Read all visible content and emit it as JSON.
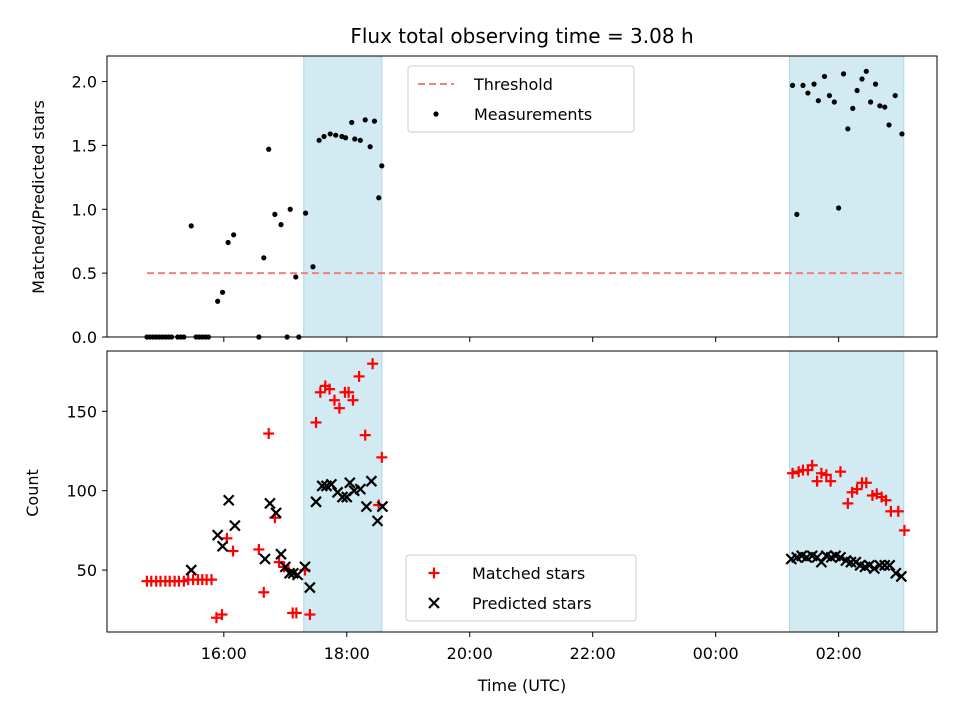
{
  "chart_data": {
    "type": "scatter",
    "title": "Flux total observing time = 3.08 h",
    "xlabel": "Time (UTC)",
    "x_tick_labels": [
      "16:00",
      "18:00",
      "20:00",
      "22:00",
      "00:00",
      "02:00"
    ],
    "x_tick_hours": [
      16,
      18,
      20,
      22,
      24,
      26
    ],
    "xlim_hours": [
      14.1,
      27.6
    ],
    "shaded_intervals_hours": [
      [
        17.3,
        18.57
      ],
      [
        25.2,
        27.06
      ]
    ],
    "colors": {
      "shade": "#add8e6",
      "threshold": "#f08080",
      "matched": "#ff0000",
      "predicted": "#000000"
    },
    "panels": [
      {
        "ylabel": "Matched/Predicted stars",
        "ylim": [
          0,
          2.2
        ],
        "y_ticks": [
          0.0,
          0.5,
          1.0,
          1.5,
          2.0
        ],
        "y_tick_labels": [
          "0.0",
          "0.5",
          "1.0",
          "1.5",
          "2.0"
        ],
        "legend": [
          "Threshold",
          "Measurements"
        ],
        "threshold": {
          "name": "Threshold",
          "value": 0.5,
          "x_range_hours": [
            14.75,
            27.07
          ]
        },
        "series": [
          {
            "name": "Measurements",
            "marker": "dot",
            "points": [
              [
                14.75,
                0.0
              ],
              [
                14.8,
                0.0
              ],
              [
                14.85,
                0.0
              ],
              [
                14.9,
                0.0
              ],
              [
                14.95,
                0.0
              ],
              [
                15.0,
                0.0
              ],
              [
                15.05,
                0.0
              ],
              [
                15.1,
                0.0
              ],
              [
                15.15,
                0.0
              ],
              [
                15.25,
                0.0
              ],
              [
                15.3,
                0.0
              ],
              [
                15.35,
                0.0
              ],
              [
                15.47,
                0.87
              ],
              [
                15.55,
                0.0
              ],
              [
                15.6,
                0.0
              ],
              [
                15.65,
                0.0
              ],
              [
                15.7,
                0.0
              ],
              [
                15.75,
                0.0
              ],
              [
                15.9,
                0.28
              ],
              [
                15.98,
                0.35
              ],
              [
                16.07,
                0.74
              ],
              [
                16.16,
                0.8
              ],
              [
                16.57,
                0.0
              ],
              [
                16.65,
                0.62
              ],
              [
                16.73,
                1.47
              ],
              [
                16.83,
                0.96
              ],
              [
                16.93,
                0.88
              ],
              [
                17.03,
                0.0
              ],
              [
                17.08,
                1.0
              ],
              [
                17.17,
                0.47
              ],
              [
                17.22,
                0.0
              ],
              [
                17.33,
                0.97
              ],
              [
                17.45,
                0.55
              ],
              [
                17.55,
                1.54
              ],
              [
                17.63,
                1.57
              ],
              [
                17.73,
                1.59
              ],
              [
                17.82,
                1.58
              ],
              [
                17.92,
                1.57
              ],
              [
                17.98,
                1.56
              ],
              [
                18.08,
                1.68
              ],
              [
                18.13,
                1.55
              ],
              [
                18.22,
                1.54
              ],
              [
                18.3,
                1.7
              ],
              [
                18.38,
                1.49
              ],
              [
                18.45,
                1.69
              ],
              [
                18.52,
                1.09
              ],
              [
                18.57,
                1.34
              ],
              [
                25.25,
                1.97
              ],
              [
                25.32,
                0.96
              ],
              [
                25.42,
                1.97
              ],
              [
                25.5,
                1.91
              ],
              [
                25.6,
                1.98
              ],
              [
                25.67,
                1.85
              ],
              [
                25.77,
                2.04
              ],
              [
                25.85,
                1.89
              ],
              [
                25.93,
                1.84
              ],
              [
                26.0,
                1.01
              ],
              [
                26.08,
                2.06
              ],
              [
                26.15,
                1.63
              ],
              [
                26.23,
                1.79
              ],
              [
                26.3,
                1.93
              ],
              [
                26.38,
                2.02
              ],
              [
                26.45,
                2.08
              ],
              [
                26.52,
                1.84
              ],
              [
                26.6,
                1.98
              ],
              [
                26.67,
                1.81
              ],
              [
                26.75,
                1.8
              ],
              [
                26.82,
                1.66
              ],
              [
                26.92,
                1.89
              ],
              [
                27.03,
                1.59
              ]
            ]
          }
        ]
      },
      {
        "ylabel": "Count",
        "ylim": [
          11,
          188
        ],
        "y_ticks": [
          50,
          100,
          150
        ],
        "y_tick_labels": [
          "50",
          "100",
          "150"
        ],
        "legend": [
          "Matched stars",
          "Predicted stars"
        ],
        "series": [
          {
            "name": "Matched stars",
            "marker": "plus",
            "points": [
              [
                14.75,
                43
              ],
              [
                14.82,
                43
              ],
              [
                14.9,
                43
              ],
              [
                14.97,
                43
              ],
              [
                15.05,
                43
              ],
              [
                15.12,
                43
              ],
              [
                15.2,
                43
              ],
              [
                15.27,
                43
              ],
              [
                15.35,
                43
              ],
              [
                15.42,
                44
              ],
              [
                15.5,
                44
              ],
              [
                15.58,
                44
              ],
              [
                15.65,
                44
              ],
              [
                15.72,
                44
              ],
              [
                15.8,
                44
              ],
              [
                15.88,
                20
              ],
              [
                15.97,
                22
              ],
              [
                16.05,
                70
              ],
              [
                16.15,
                62
              ],
              [
                16.57,
                63
              ],
              [
                16.65,
                36
              ],
              [
                16.73,
                136
              ],
              [
                16.83,
                83
              ],
              [
                16.9,
                55
              ],
              [
                16.98,
                52
              ],
              [
                17.05,
                50
              ],
              [
                17.12,
                23
              ],
              [
                17.18,
                23
              ],
              [
                17.32,
                50
              ],
              [
                17.4,
                22
              ],
              [
                17.5,
                143
              ],
              [
                17.57,
                162
              ],
              [
                17.65,
                166
              ],
              [
                17.72,
                164
              ],
              [
                17.8,
                157
              ],
              [
                17.88,
                152
              ],
              [
                17.97,
                162
              ],
              [
                18.03,
                162
              ],
              [
                18.1,
                157
              ],
              [
                18.2,
                172
              ],
              [
                18.3,
                135
              ],
              [
                18.42,
                180
              ],
              [
                18.52,
                91
              ],
              [
                18.57,
                121
              ],
              [
                25.25,
                111
              ],
              [
                25.35,
                112
              ],
              [
                25.42,
                113
              ],
              [
                25.5,
                113
              ],
              [
                25.57,
                116
              ],
              [
                25.65,
                106
              ],
              [
                25.72,
                111
              ],
              [
                25.8,
                110
              ],
              [
                25.87,
                106
              ],
              [
                26.03,
                112
              ],
              [
                26.15,
                92
              ],
              [
                26.22,
                99
              ],
              [
                26.3,
                101
              ],
              [
                26.38,
                105
              ],
              [
                26.45,
                105
              ],
              [
                26.55,
                97
              ],
              [
                26.62,
                98
              ],
              [
                26.7,
                96
              ],
              [
                26.77,
                94
              ],
              [
                26.85,
                87
              ],
              [
                26.97,
                87
              ],
              [
                27.07,
                75
              ]
            ]
          },
          {
            "name": "Predicted stars",
            "marker": "x",
            "points": [
              [
                15.47,
                50
              ],
              [
                15.9,
                72
              ],
              [
                15.98,
                65
              ],
              [
                16.08,
                94
              ],
              [
                16.18,
                78
              ],
              [
                16.67,
                57
              ],
              [
                16.75,
                92
              ],
              [
                16.85,
                86
              ],
              [
                16.93,
                60
              ],
              [
                17.0,
                52
              ],
              [
                17.07,
                48
              ],
              [
                17.13,
                48
              ],
              [
                17.2,
                47
              ],
              [
                17.32,
                52
              ],
              [
                17.4,
                39
              ],
              [
                17.5,
                93
              ],
              [
                17.6,
                103
              ],
              [
                17.67,
                103
              ],
              [
                17.75,
                104
              ],
              [
                17.85,
                99
              ],
              [
                17.93,
                96
              ],
              [
                18.0,
                96
              ],
              [
                18.05,
                105
              ],
              [
                18.12,
                100
              ],
              [
                18.22,
                101
              ],
              [
                18.32,
                90
              ],
              [
                18.4,
                106
              ],
              [
                18.5,
                81
              ],
              [
                18.58,
                90
              ],
              [
                25.23,
                57
              ],
              [
                25.32,
                58
              ],
              [
                25.4,
                59
              ],
              [
                25.48,
                58
              ],
              [
                25.57,
                59
              ],
              [
                25.65,
                58
              ],
              [
                25.72,
                55
              ],
              [
                25.8,
                59
              ],
              [
                25.88,
                58
              ],
              [
                25.95,
                59
              ],
              [
                26.03,
                58
              ],
              [
                26.12,
                56
              ],
              [
                26.2,
                55
              ],
              [
                26.28,
                55
              ],
              [
                26.35,
                53
              ],
              [
                26.43,
                52
              ],
              [
                26.5,
                53
              ],
              [
                26.58,
                51
              ],
              [
                26.67,
                53
              ],
              [
                26.75,
                53
              ],
              [
                26.83,
                53
              ],
              [
                26.93,
                48
              ],
              [
                27.02,
                46
              ]
            ]
          }
        ]
      }
    ]
  }
}
